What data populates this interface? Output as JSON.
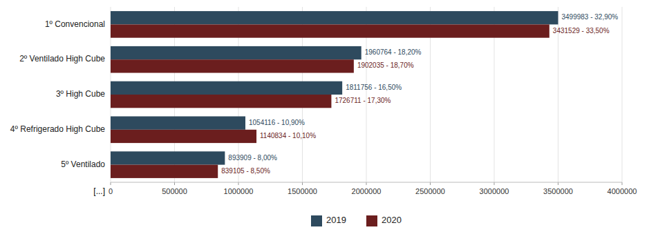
{
  "chart_data": {
    "type": "bar",
    "orientation": "horizontal",
    "categories": [
      "5º Ventilado",
      "4º Refrigerado High Cube",
      "3º High Cube",
      "2º Ventilado High Cube",
      "1º Convencional"
    ],
    "series": [
      {
        "name": "2019",
        "color": "#2E4A5E",
        "values": [
          893909,
          1054116,
          1811756,
          1960764,
          3499983
        ],
        "value_labels": [
          "893909 - 8,00%",
          "1054116 - 10,90%",
          "1811756 - 16,50%",
          "1960764 - 18,20%",
          "3499983 - 32,90%"
        ]
      },
      {
        "name": "2020",
        "color": "#6B1E1E",
        "values": [
          839105,
          1140834,
          1726711,
          1902035,
          3431529
        ],
        "value_labels": [
          "839105 - 8,50%",
          "1140834 - 10,10%",
          "1726711 - 17,30%",
          "1902035 - 18,70%",
          "3431529 - 33,50%"
        ]
      }
    ],
    "xlim": [
      0,
      4000000
    ],
    "xticks": [
      0,
      500000,
      1000000,
      1500000,
      2000000,
      2500000,
      3000000,
      3500000,
      4000000
    ],
    "grid": true,
    "legend": "bottom",
    "data_labels": true,
    "annotation": "[...]"
  }
}
